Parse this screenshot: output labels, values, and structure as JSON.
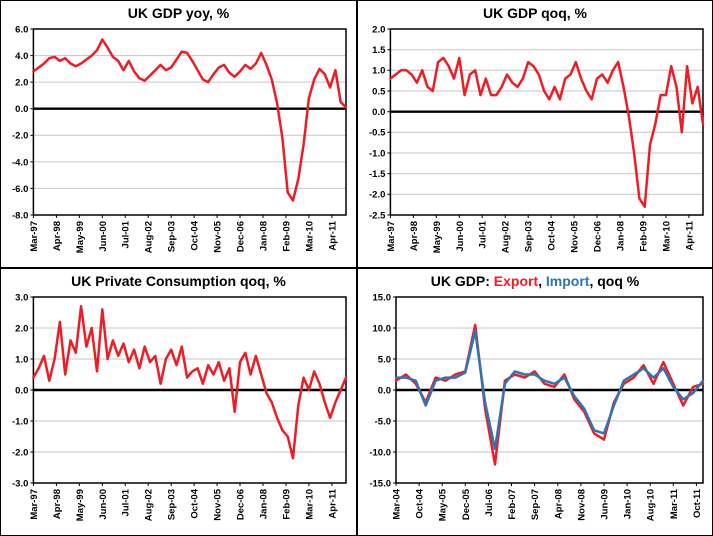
{
  "page": {
    "description": "Four-panel UK macroeconomic chart grid",
    "background": "#FFFFFF"
  },
  "colors": {
    "series_red": "#EE1C25",
    "series_blue": "#2E75B6",
    "grid": "#C6C6C6",
    "axis": "#000000"
  },
  "chart_data": [
    {
      "type": "line",
      "title": "UK GDP yoy, %",
      "xlabel": "",
      "ylabel": "",
      "ylim": [
        -8.0,
        6.0
      ],
      "ystep": 2.0,
      "grid": true,
      "grid_color": "#C6C6C6",
      "legend_position": "none",
      "months_per_point": 3,
      "months_per_label": 13,
      "x_tick_labels": [
        "Mar-97",
        "Apr-98",
        "May-99",
        "Jun-00",
        "Jul-01",
        "Aug-02",
        "Sep-03",
        "Oct-04",
        "Nov-05",
        "Dec-06",
        "Jan-08",
        "Feb-09",
        "Mar-10",
        "Apr-11"
      ],
      "series": [
        {
          "name": "UK GDP yoy",
          "color": "#EE1C25",
          "values": [
            2.8,
            3.1,
            3.4,
            3.8,
            3.9,
            3.6,
            3.8,
            3.4,
            3.2,
            3.4,
            3.7,
            4.0,
            4.4,
            5.2,
            4.6,
            3.9,
            3.6,
            2.9,
            3.6,
            2.8,
            2.3,
            2.1,
            2.5,
            2.9,
            3.3,
            2.9,
            3.1,
            3.7,
            4.3,
            4.2,
            3.6,
            2.9,
            2.2,
            2.0,
            2.6,
            3.1,
            3.3,
            2.7,
            2.4,
            2.8,
            3.3,
            3.0,
            3.4,
            4.2,
            3.3,
            2.2,
            0.4,
            -2.2,
            -6.3,
            -6.9,
            -5.3,
            -2.7,
            0.8,
            2.2,
            3.0,
            2.6,
            1.6,
            2.9,
            0.5,
            0.1
          ]
        }
      ]
    },
    {
      "type": "line",
      "title": "UK GDP qoq, %",
      "xlabel": "",
      "ylabel": "",
      "ylim": [
        -2.5,
        2.0
      ],
      "ystep": 0.5,
      "grid": true,
      "grid_color": "#C6C6C6",
      "legend_position": "none",
      "months_per_point": 3,
      "months_per_label": 13,
      "x_tick_labels": [
        "Mar-97",
        "Apr-98",
        "May-99",
        "Jun-00",
        "Jul-01",
        "Aug-02",
        "Sep-03",
        "Oct-04",
        "Nov-05",
        "Dec-06",
        "Jan-08",
        "Feb-09",
        "Mar-10",
        "Apr-11"
      ],
      "series": [
        {
          "name": "UK GDP qoq",
          "color": "#EE1C25",
          "values": [
            0.8,
            0.9,
            1.0,
            1.0,
            0.9,
            0.7,
            1.0,
            0.6,
            0.5,
            1.2,
            1.3,
            1.1,
            0.8,
            1.3,
            0.4,
            0.9,
            1.0,
            0.4,
            0.8,
            0.4,
            0.4,
            0.6,
            0.9,
            0.7,
            0.6,
            0.8,
            1.2,
            1.1,
            0.9,
            0.5,
            0.3,
            0.6,
            0.3,
            0.8,
            0.9,
            1.2,
            0.8,
            0.5,
            0.3,
            0.8,
            0.9,
            0.7,
            1.0,
            1.2,
            0.6,
            -0.1,
            -1.0,
            -2.1,
            -2.3,
            -0.8,
            -0.3,
            0.4,
            0.4,
            1.1,
            0.6,
            -0.5,
            1.1,
            0.2,
            0.6,
            -0.3
          ]
        }
      ]
    },
    {
      "type": "line",
      "title": "UK Private Consumption qoq, %",
      "xlabel": "",
      "ylabel": "",
      "ylim": [
        -3.0,
        3.0
      ],
      "ystep": 1.0,
      "grid": true,
      "grid_color": "#C6C6C6",
      "legend_position": "none",
      "months_per_point": 3,
      "months_per_label": 13,
      "x_tick_labels": [
        "Mar-97",
        "Apr-98",
        "May-99",
        "Jun-00",
        "Jul-01",
        "Aug-02",
        "Sep-03",
        "Oct-04",
        "Nov-05",
        "Dec-06",
        "Jan-08",
        "Feb-09",
        "Mar-10",
        "Apr-11"
      ],
      "series": [
        {
          "name": "UK Private Consumption qoq",
          "color": "#EE1C25",
          "values": [
            0.4,
            0.7,
            1.1,
            0.3,
            1.0,
            2.2,
            0.5,
            1.6,
            1.2,
            2.7,
            1.4,
            2.0,
            0.6,
            2.6,
            1.0,
            1.6,
            1.1,
            1.5,
            0.9,
            1.3,
            0.7,
            1.4,
            0.9,
            1.1,
            0.2,
            1.0,
            1.3,
            0.8,
            1.4,
            0.4,
            0.6,
            0.7,
            0.2,
            0.8,
            0.5,
            0.9,
            0.3,
            0.7,
            -0.7,
            0.9,
            1.2,
            0.5,
            1.1,
            0.5,
            -0.1,
            -0.4,
            -0.9,
            -1.3,
            -1.5,
            -2.2,
            -0.5,
            0.4,
            0.0,
            0.6,
            0.2,
            -0.4,
            -0.9,
            -0.4,
            0.0,
            0.4
          ]
        }
      ]
    },
    {
      "type": "line",
      "title": "UK GDP: Export, Import, qoq %",
      "title_parts": [
        {
          "text": "UK GDP: ",
          "color": "#000000"
        },
        {
          "text": "Export",
          "color": "#EE1C25"
        },
        {
          "text": ", ",
          "color": "#000000"
        },
        {
          "text": "Import",
          "color": "#2E75B6"
        },
        {
          "text": ", qoq %",
          "color": "#000000"
        }
      ],
      "xlabel": "",
      "ylabel": "",
      "ylim": [
        -15.0,
        15.0
      ],
      "ystep": 5.0,
      "grid": true,
      "grid_color": "#C6C6C6",
      "legend_position": "in-title",
      "months_per_point": 3,
      "months_per_label": 7,
      "x_tick_labels": [
        "Mar-04",
        "Oct-04",
        "May-05",
        "Dec-05",
        "Jul-06",
        "Feb-07",
        "Sep-07",
        "Apr-08",
        "Nov-08",
        "Jun-09",
        "Jan-10",
        "Aug-10",
        "Mar-11",
        "Oct-11"
      ],
      "series": [
        {
          "name": "Export",
          "color": "#EE1C25",
          "values": [
            1.5,
            2.5,
            1.0,
            -2.0,
            2.0,
            1.5,
            2.5,
            3.0,
            10.5,
            -3.0,
            -12.0,
            1.5,
            2.5,
            2.0,
            3.0,
            1.0,
            0.5,
            2.5,
            -1.5,
            -3.5,
            -7.0,
            -8.0,
            -2.0,
            1.0,
            2.0,
            4.0,
            1.0,
            4.5,
            1.0,
            -2.5,
            0.5,
            1.0
          ]
        },
        {
          "name": "Import",
          "color": "#2E75B6",
          "values": [
            2.0,
            2.0,
            1.5,
            -2.5,
            1.5,
            2.0,
            2.0,
            2.8,
            9.5,
            -2.0,
            -9.5,
            1.0,
            3.0,
            2.5,
            2.5,
            1.5,
            1.0,
            2.0,
            -1.0,
            -3.0,
            -6.5,
            -7.0,
            -2.5,
            1.5,
            2.5,
            3.5,
            2.0,
            3.5,
            0.5,
            -1.5,
            -0.5,
            1.5
          ]
        }
      ]
    }
  ]
}
